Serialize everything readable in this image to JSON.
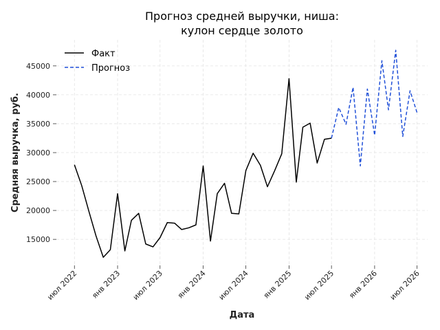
{
  "chart_data": {
    "type": "line",
    "title_lines": [
      "Прогноз средней выручки, ниша:",
      "кулон сердце золото"
    ],
    "xlabel": "Дата",
    "ylabel": "Средняя выручка, руб.",
    "x_ticks": [
      {
        "date": "2022-07-01",
        "label": "июл 2022"
      },
      {
        "date": "2023-01-01",
        "label": "янв 2023"
      },
      {
        "date": "2023-07-01",
        "label": "июл 2023"
      },
      {
        "date": "2024-01-01",
        "label": "янв 2024"
      },
      {
        "date": "2024-07-01",
        "label": "июл 2024"
      },
      {
        "date": "2025-01-01",
        "label": "янв 2025"
      },
      {
        "date": "2025-07-01",
        "label": "июл 2025"
      },
      {
        "date": "2026-01-01",
        "label": "янв 2026"
      },
      {
        "date": "2026-07-01",
        "label": "июл 2026"
      }
    ],
    "y_ticks": [
      15000,
      20000,
      25000,
      30000,
      35000,
      40000,
      45000
    ],
    "xlim": [
      "2022-04-15",
      "2026-08-15"
    ],
    "ylim": [
      10500,
      49500
    ],
    "grid": true,
    "legend_position": "top-left",
    "series": [
      {
        "name": "Факт",
        "color": "#000000",
        "style": "solid",
        "points": [
          {
            "x": "2022-07-01",
            "y": 27900
          },
          {
            "x": "2022-08-01",
            "y": 24300
          },
          {
            "x": "2022-09-01",
            "y": 19800
          },
          {
            "x": "2022-10-01",
            "y": 15600
          },
          {
            "x": "2022-11-01",
            "y": 11900
          },
          {
            "x": "2022-12-01",
            "y": 13200
          },
          {
            "x": "2023-01-01",
            "y": 22900
          },
          {
            "x": "2023-02-01",
            "y": 13000
          },
          {
            "x": "2023-03-01",
            "y": 18300
          },
          {
            "x": "2023-04-01",
            "y": 19500
          },
          {
            "x": "2023-05-01",
            "y": 14200
          },
          {
            "x": "2023-06-01",
            "y": 13700
          },
          {
            "x": "2023-07-01",
            "y": 15300
          },
          {
            "x": "2023-08-01",
            "y": 17900
          },
          {
            "x": "2023-09-01",
            "y": 17800
          },
          {
            "x": "2023-10-01",
            "y": 16700
          },
          {
            "x": "2023-11-01",
            "y": 17000
          },
          {
            "x": "2023-12-01",
            "y": 17500
          },
          {
            "x": "2024-01-01",
            "y": 27700
          },
          {
            "x": "2024-02-01",
            "y": 14700
          },
          {
            "x": "2024-03-01",
            "y": 22900
          },
          {
            "x": "2024-04-01",
            "y": 24700
          },
          {
            "x": "2024-05-01",
            "y": 19500
          },
          {
            "x": "2024-06-01",
            "y": 19400
          },
          {
            "x": "2024-07-01",
            "y": 26900
          },
          {
            "x": "2024-08-01",
            "y": 29900
          },
          {
            "x": "2024-09-01",
            "y": 27800
          },
          {
            "x": "2024-10-01",
            "y": 24100
          },
          {
            "x": "2024-11-01",
            "y": 26900
          },
          {
            "x": "2024-12-01",
            "y": 29800
          },
          {
            "x": "2025-01-01",
            "y": 42800
          },
          {
            "x": "2025-02-01",
            "y": 24900
          },
          {
            "x": "2025-03-01",
            "y": 34400
          },
          {
            "x": "2025-04-01",
            "y": 35100
          },
          {
            "x": "2025-05-01",
            "y": 28200
          },
          {
            "x": "2025-06-01",
            "y": 32300
          },
          {
            "x": "2025-07-01",
            "y": 32500
          }
        ]
      },
      {
        "name": "Прогноз",
        "color": "#1f4fd8",
        "style": "dashed",
        "points": [
          {
            "x": "2025-07-01",
            "y": 32500
          },
          {
            "x": "2025-08-01",
            "y": 37800
          },
          {
            "x": "2025-09-01",
            "y": 34900
          },
          {
            "x": "2025-10-01",
            "y": 41300
          },
          {
            "x": "2025-11-01",
            "y": 27700
          },
          {
            "x": "2025-12-01",
            "y": 41000
          },
          {
            "x": "2026-01-01",
            "y": 33000
          },
          {
            "x": "2026-02-01",
            "y": 45900
          },
          {
            "x": "2026-03-01",
            "y": 37400
          },
          {
            "x": "2026-04-01",
            "y": 47700
          },
          {
            "x": "2026-05-01",
            "y": 32800
          },
          {
            "x": "2026-06-01",
            "y": 40700
          },
          {
            "x": "2026-07-01",
            "y": 36900
          }
        ]
      }
    ]
  }
}
